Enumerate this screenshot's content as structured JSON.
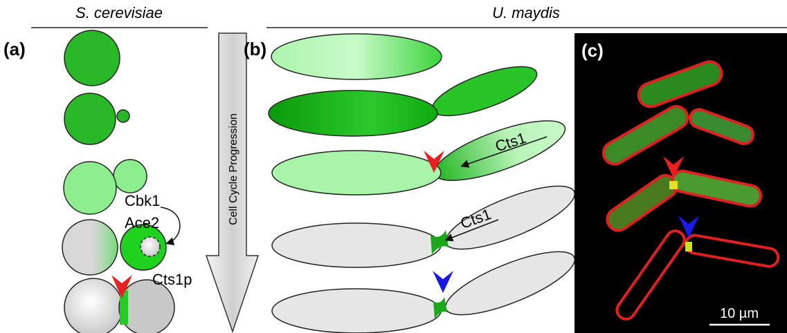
{
  "header": {
    "left_title": "S. cerevisiae",
    "right_title": "U. maydis"
  },
  "panels": {
    "a": {
      "label": "(a)",
      "annotations": [
        "Cbk1",
        "Ace2",
        "Cts1p"
      ]
    },
    "arrow": {
      "label": "Cell Cycle Progression"
    },
    "b": {
      "label": "(b)",
      "annotations": [
        "Cts1",
        "Cts1"
      ]
    },
    "c": {
      "label": "(c)",
      "scale_bar": "10 µm"
    }
  }
}
